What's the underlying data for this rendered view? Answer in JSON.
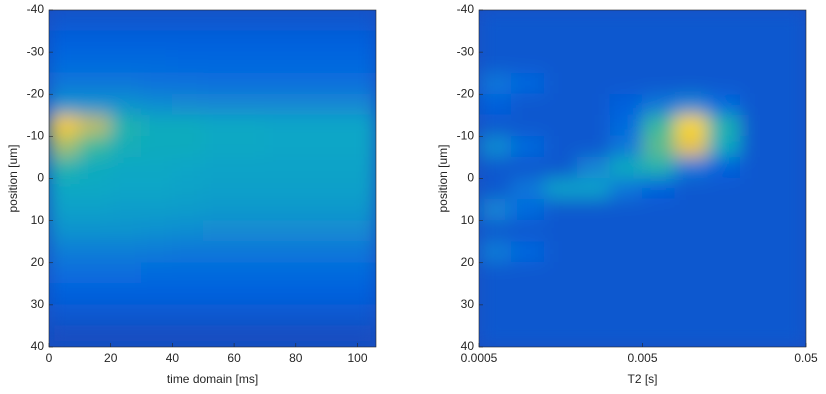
{
  "chart_data": [
    {
      "type": "heatmap",
      "xlabel": "time domain [ms]",
      "ylabel": "position [um]",
      "xlim": [
        0,
        106
      ],
      "xticks": [
        0,
        20,
        40,
        60,
        80,
        100
      ],
      "ylim": [
        -40,
        40
      ],
      "yticks": [
        -40,
        -30,
        -20,
        -10,
        0,
        10,
        20,
        30,
        40
      ],
      "y_reversed": true,
      "x_bins": [
        0,
        10,
        20,
        30,
        40,
        50,
        60,
        70,
        80,
        90,
        100,
        106
      ],
      "y_bins": [
        -40,
        -35,
        -30,
        -25,
        -20,
        -15,
        -10,
        -5,
        0,
        5,
        10,
        15,
        20,
        25,
        30,
        35,
        40
      ],
      "z": [
        [
          0.1,
          0.1,
          0.1,
          0.1,
          0.1,
          0.1,
          0.1,
          0.1,
          0.1,
          0.1,
          0.1
        ],
        [
          0.12,
          0.12,
          0.12,
          0.12,
          0.12,
          0.12,
          0.12,
          0.12,
          0.12,
          0.12,
          0.12
        ],
        [
          0.15,
          0.15,
          0.15,
          0.15,
          0.14,
          0.14,
          0.14,
          0.14,
          0.14,
          0.14,
          0.14
        ],
        [
          0.2,
          0.2,
          0.2,
          0.18,
          0.18,
          0.17,
          0.17,
          0.17,
          0.17,
          0.17,
          0.17
        ],
        [
          0.3,
          0.3,
          0.3,
          0.28,
          0.27,
          0.26,
          0.26,
          0.26,
          0.26,
          0.26,
          0.26
        ],
        [
          0.85,
          0.7,
          0.45,
          0.4,
          0.4,
          0.38,
          0.38,
          0.37,
          0.37,
          0.37,
          0.37
        ],
        [
          0.65,
          0.5,
          0.42,
          0.4,
          0.4,
          0.38,
          0.38,
          0.37,
          0.37,
          0.37,
          0.37
        ],
        [
          0.45,
          0.4,
          0.38,
          0.38,
          0.37,
          0.36,
          0.36,
          0.36,
          0.36,
          0.36,
          0.36
        ],
        [
          0.38,
          0.38,
          0.37,
          0.37,
          0.36,
          0.35,
          0.35,
          0.35,
          0.35,
          0.35,
          0.35
        ],
        [
          0.35,
          0.35,
          0.34,
          0.34,
          0.33,
          0.32,
          0.32,
          0.32,
          0.32,
          0.32,
          0.32
        ],
        [
          0.3,
          0.3,
          0.3,
          0.29,
          0.28,
          0.27,
          0.27,
          0.27,
          0.27,
          0.27,
          0.27
        ],
        [
          0.22,
          0.22,
          0.22,
          0.21,
          0.2,
          0.2,
          0.2,
          0.2,
          0.2,
          0.2,
          0.2
        ],
        [
          0.16,
          0.16,
          0.16,
          0.15,
          0.15,
          0.15,
          0.15,
          0.15,
          0.15,
          0.15,
          0.15
        ],
        [
          0.12,
          0.12,
          0.12,
          0.12,
          0.12,
          0.12,
          0.12,
          0.12,
          0.12,
          0.12,
          0.12
        ],
        [
          0.1,
          0.1,
          0.1,
          0.1,
          0.1,
          0.1,
          0.1,
          0.1,
          0.1,
          0.1,
          0.1
        ],
        [
          0.08,
          0.08,
          0.08,
          0.08,
          0.08,
          0.08,
          0.08,
          0.08,
          0.08,
          0.08,
          0.08
        ]
      ],
      "colormap": [
        "#352a87",
        "#0363e1",
        "#1485d4",
        "#06a7c6",
        "#38b99e",
        "#92bf73",
        "#d9ba56",
        "#fcce2e",
        "#f9fb0e"
      ],
      "clim": [
        0,
        1
      ]
    },
    {
      "type": "heatmap",
      "xlabel": "T2 [s]",
      "ylabel": "position [um]",
      "xscale": "log",
      "xlim": [
        0.0005,
        0.05
      ],
      "xticks": [
        0.0005,
        0.005,
        0.05
      ],
      "ylim": [
        -40,
        40
      ],
      "yticks": [
        -40,
        -30,
        -20,
        -10,
        0,
        10,
        20,
        30,
        40
      ],
      "y_reversed": true,
      "x_bins": [
        0.0005,
        0.00079,
        0.00126,
        0.002,
        0.00317,
        0.005,
        0.00792,
        0.01256,
        0.0199,
        0.03155,
        0.05
      ],
      "y_bins": [
        -40,
        -35,
        -30,
        -25,
        -20,
        -15,
        -10,
        -5,
        0,
        5,
        10,
        15,
        20,
        25,
        30,
        35,
        40
      ],
      "z": [
        [
          0.1,
          0.1,
          0.1,
          0.1,
          0.1,
          0.1,
          0.1,
          0.1,
          0.1,
          0.1
        ],
        [
          0.1,
          0.1,
          0.1,
          0.1,
          0.1,
          0.1,
          0.1,
          0.1,
          0.1,
          0.1
        ],
        [
          0.1,
          0.1,
          0.1,
          0.1,
          0.1,
          0.1,
          0.1,
          0.1,
          0.1,
          0.1
        ],
        [
          0.2,
          0.14,
          0.1,
          0.1,
          0.1,
          0.1,
          0.1,
          0.1,
          0.1,
          0.1
        ],
        [
          0.12,
          0.1,
          0.1,
          0.1,
          0.12,
          0.2,
          0.25,
          0.15,
          0.1,
          0.1
        ],
        [
          0.1,
          0.1,
          0.1,
          0.1,
          0.15,
          0.5,
          0.9,
          0.45,
          0.1,
          0.1
        ],
        [
          0.28,
          0.15,
          0.1,
          0.1,
          0.2,
          0.55,
          0.8,
          0.4,
          0.1,
          0.1
        ],
        [
          0.1,
          0.1,
          0.1,
          0.25,
          0.4,
          0.45,
          0.2,
          0.12,
          0.1,
          0.1
        ],
        [
          0.1,
          0.2,
          0.35,
          0.35,
          0.2,
          0.12,
          0.1,
          0.1,
          0.1,
          0.1
        ],
        [
          0.25,
          0.15,
          0.1,
          0.1,
          0.1,
          0.1,
          0.1,
          0.1,
          0.1,
          0.1
        ],
        [
          0.1,
          0.1,
          0.1,
          0.1,
          0.1,
          0.1,
          0.1,
          0.1,
          0.1,
          0.1
        ],
        [
          0.22,
          0.14,
          0.1,
          0.1,
          0.1,
          0.1,
          0.1,
          0.1,
          0.1,
          0.1
        ],
        [
          0.1,
          0.1,
          0.1,
          0.1,
          0.1,
          0.1,
          0.1,
          0.1,
          0.1,
          0.1
        ],
        [
          0.1,
          0.1,
          0.1,
          0.1,
          0.1,
          0.1,
          0.1,
          0.1,
          0.1,
          0.1
        ],
        [
          0.1,
          0.1,
          0.1,
          0.1,
          0.1,
          0.1,
          0.1,
          0.1,
          0.1,
          0.1
        ],
        [
          0.1,
          0.1,
          0.1,
          0.1,
          0.1,
          0.1,
          0.1,
          0.1,
          0.1,
          0.1
        ]
      ],
      "colormap": [
        "#352a87",
        "#0363e1",
        "#1485d4",
        "#06a7c6",
        "#38b99e",
        "#92bf73",
        "#d9ba56",
        "#fcce2e",
        "#f9fb0e"
      ],
      "clim": [
        0,
        1
      ]
    }
  ]
}
